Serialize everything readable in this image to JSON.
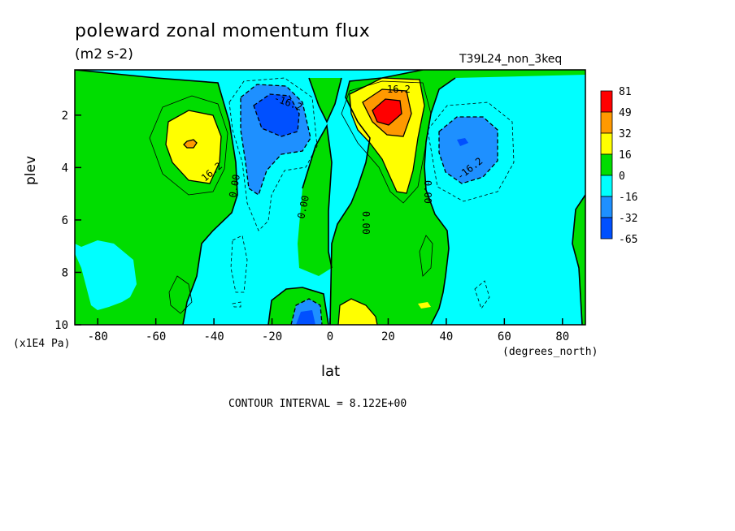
{
  "chart_data": {
    "type": "contour",
    "title": "poleward zonal momentum flux",
    "units": "(m2 s-2)",
    "run_label": "T39L24_non_3keq",
    "xlabel": "lat",
    "x_units": "(degrees_north)",
    "ylabel": "plev",
    "y_multiplier": "(x1E4 Pa)",
    "xlim": [
      -87.9,
      87.9
    ],
    "ylim": [
      10,
      0.27
    ],
    "x_ticks": [
      -80,
      -60,
      -40,
      -20,
      0,
      20,
      40,
      60,
      80
    ],
    "y_ticks": [
      2,
      4,
      6,
      8,
      10
    ],
    "contour_interval_text": "CONTOUR INTERVAL = 8.122E+00",
    "contour_labels": [
      "16.2",
      "-16.2",
      "0.00",
      "0.00",
      "0.00",
      "0.00",
      "16.2",
      "-16.2"
    ],
    "colorbar": {
      "levels": [
        "81",
        "49",
        "32",
        "16",
        "0",
        "-16",
        "-32",
        "-65"
      ],
      "colors": [
        "#ff0000",
        "#ff9900",
        "#ffff00",
        "#00dd00",
        "#00ffff",
        "#1e90ff",
        "#0050ff"
      ]
    },
    "features": [
      {
        "type": "max",
        "lat": 18,
        "plev": 2.0,
        "value": 81
      },
      {
        "type": "min",
        "lat": -17,
        "plev": 2.0,
        "value": -35
      },
      {
        "type": "max",
        "lat": -47,
        "plev": 3.0,
        "value": 36
      },
      {
        "type": "min",
        "lat": 46,
        "plev": 3.1,
        "value": -30
      }
    ]
  }
}
